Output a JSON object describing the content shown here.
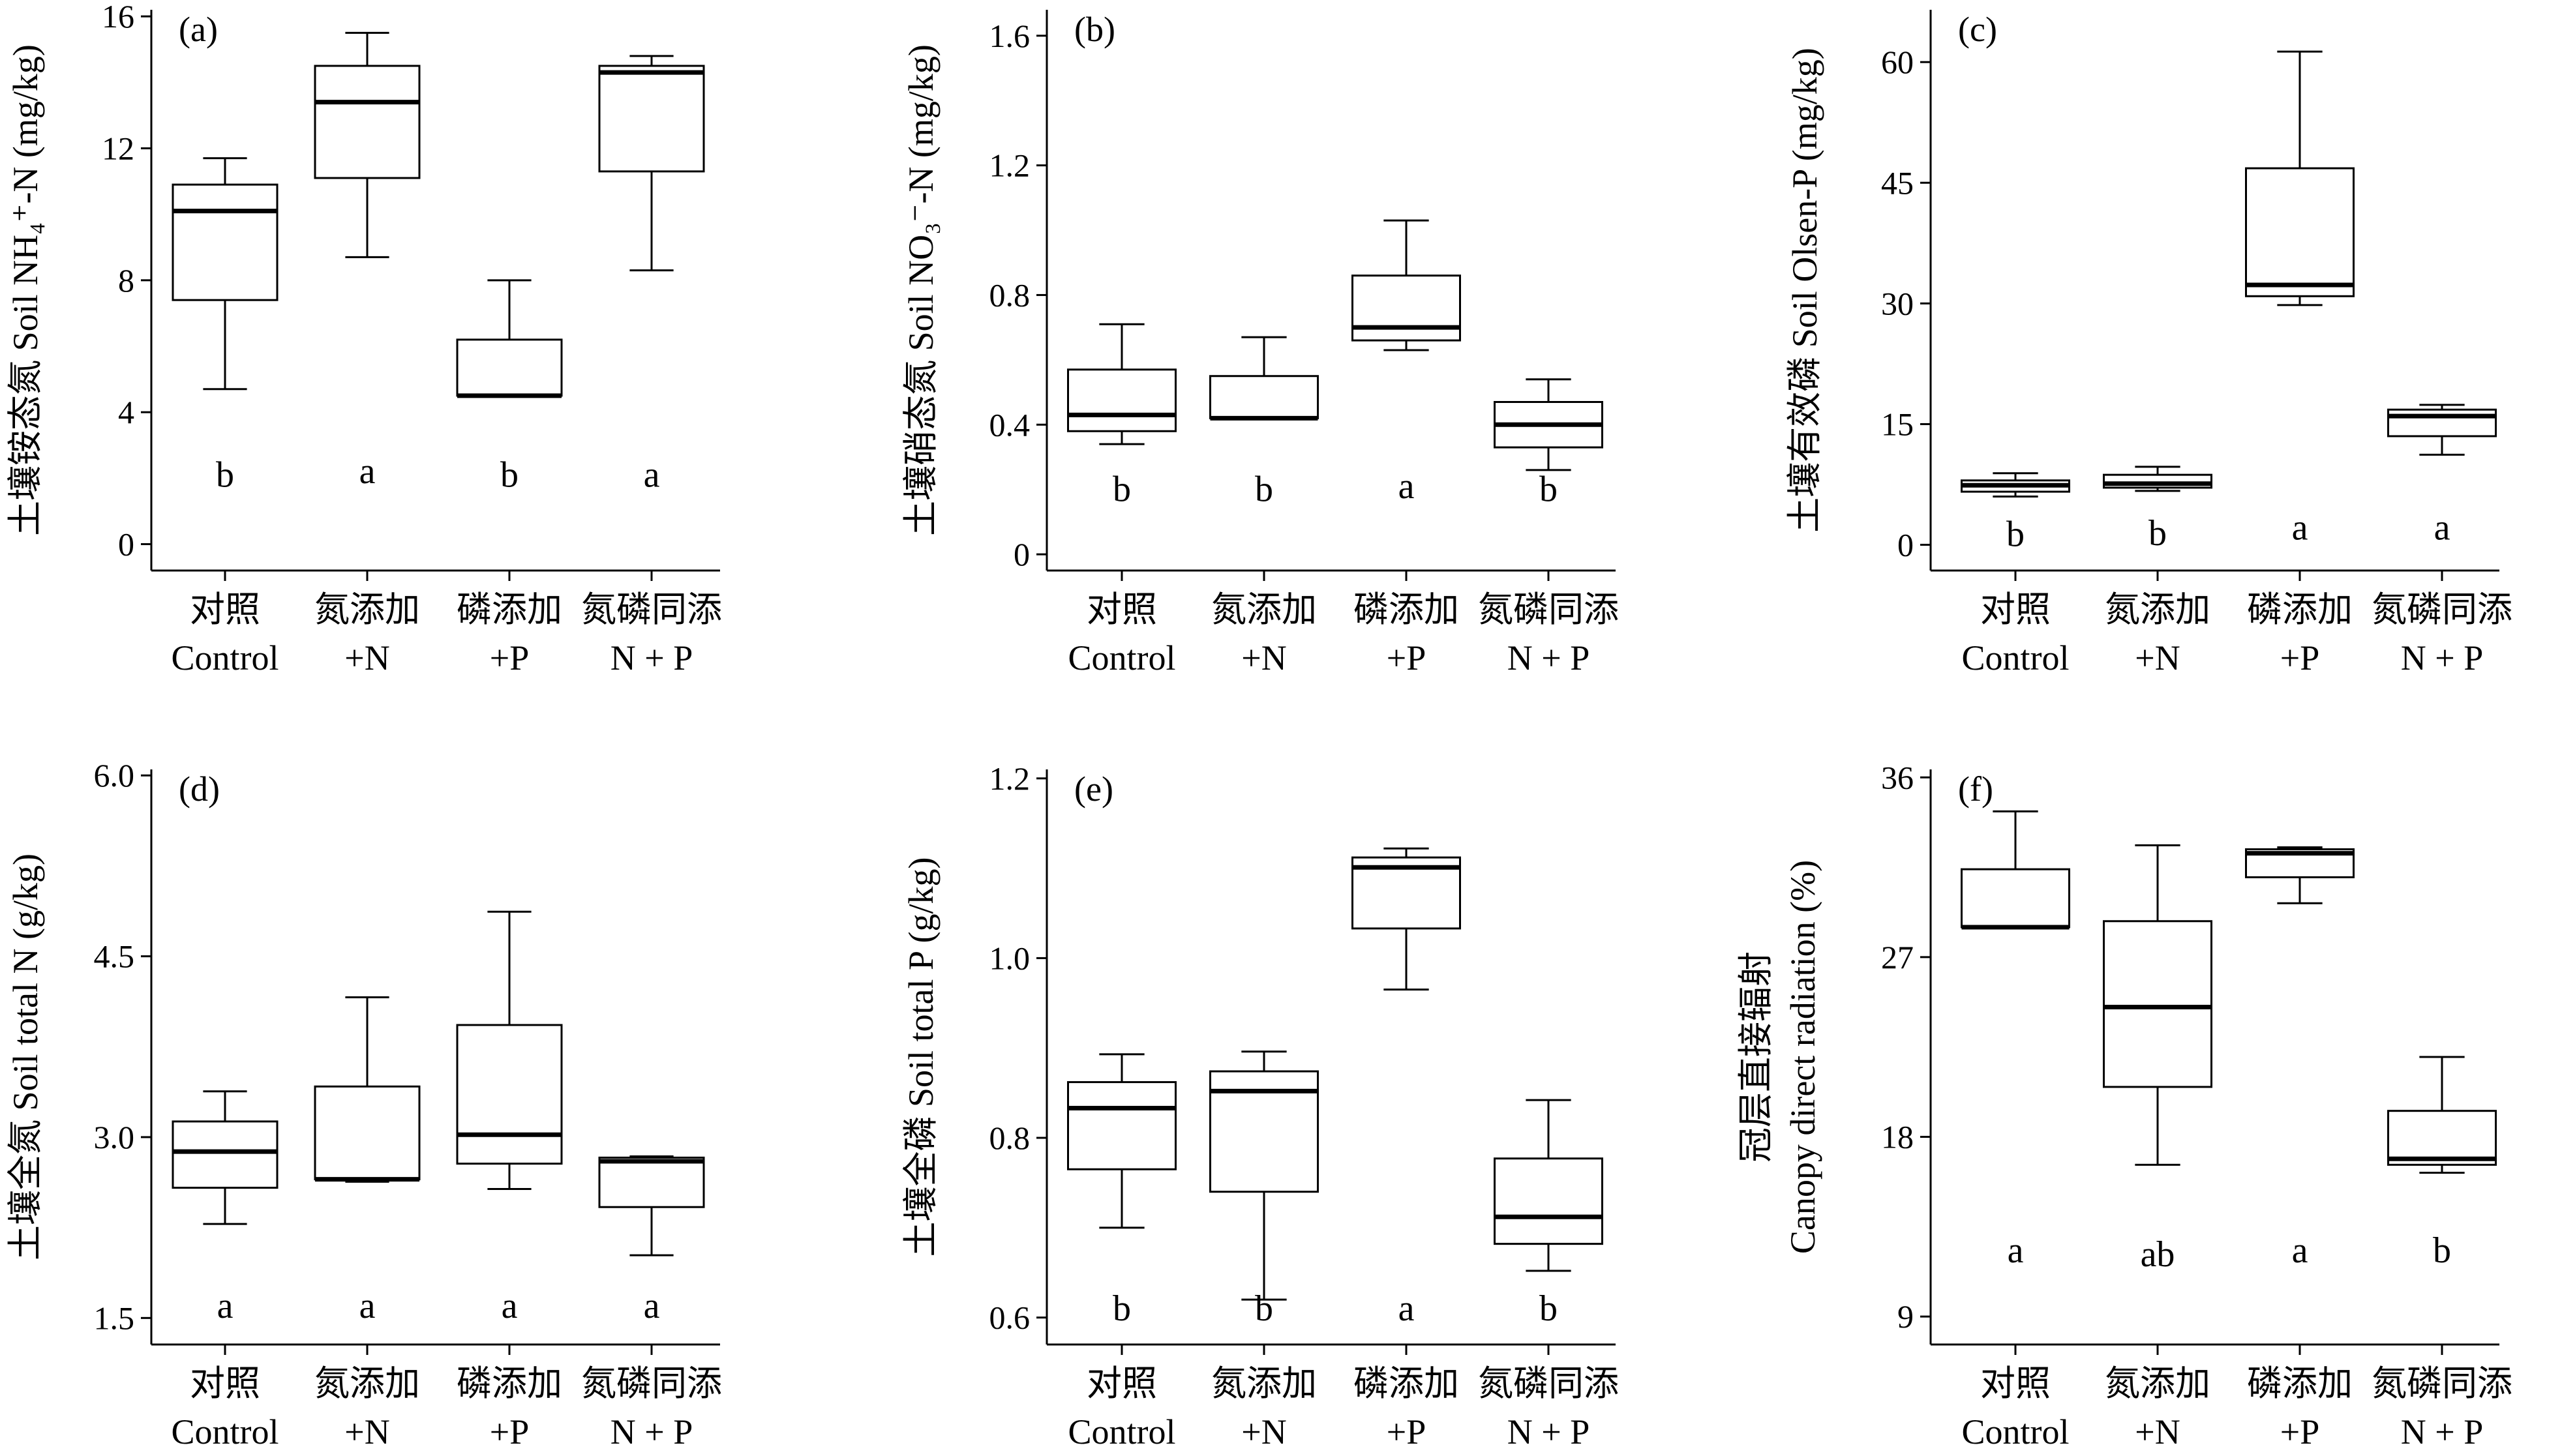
{
  "chart_data": [
    {
      "type": "box",
      "panel": "(a)",
      "ylabel": "土壤铵态氮 Soil NH₄⁺-N (mg/kg)",
      "yticks": [
        0,
        4,
        8,
        12,
        16
      ],
      "ylim": [
        -0.8,
        16.2
      ],
      "categories": [
        {
          "cn": "对照",
          "en": "Control"
        },
        {
          "cn": "氮添加",
          "en": "+N"
        },
        {
          "cn": "磷添加",
          "en": "+P"
        },
        {
          "cn": "氮磷同添",
          "en": "N + P"
        }
      ],
      "boxes": [
        {
          "min": 4.7,
          "q1": 7.4,
          "median": 10.1,
          "q3": 10.9,
          "max": 11.7
        },
        {
          "min": 8.7,
          "q1": 11.1,
          "median": 13.4,
          "q3": 14.5,
          "max": 15.5
        },
        {
          "min": 4.5,
          "q1": 4.5,
          "median": 4.5,
          "q3": 6.2,
          "max": 8.0
        },
        {
          "min": 8.3,
          "q1": 11.3,
          "median": 14.3,
          "q3": 14.5,
          "max": 14.8
        }
      ],
      "letters": [
        "b",
        "a",
        "b",
        "a"
      ],
      "letter_y": [
        2.1,
        2.2,
        2.1,
        2.1
      ]
    },
    {
      "type": "box",
      "panel": "(b)",
      "ylabel": "土壤硝态氮 Soil NO₃⁻-N (mg/kg)",
      "yticks": [
        "0",
        "0.4",
        "0.8",
        "1.2",
        "1.6"
      ],
      "ylim": [
        -0.05,
        1.68
      ],
      "categories": [
        {
          "cn": "对照",
          "en": "Control"
        },
        {
          "cn": "氮添加",
          "en": "+N"
        },
        {
          "cn": "磷添加",
          "en": "+P"
        },
        {
          "cn": "氮磷同添",
          "en": "N + P"
        }
      ],
      "boxes": [
        {
          "min": 0.34,
          "q1": 0.38,
          "median": 0.43,
          "q3": 0.57,
          "max": 0.71
        },
        {
          "min": 0.42,
          "q1": 0.42,
          "median": 0.42,
          "q3": 0.55,
          "max": 0.67
        },
        {
          "min": 0.63,
          "q1": 0.66,
          "median": 0.7,
          "q3": 0.86,
          "max": 1.03
        },
        {
          "min": 0.26,
          "q1": 0.33,
          "median": 0.4,
          "q3": 0.47,
          "max": 0.54
        }
      ],
      "letters": [
        "b",
        "b",
        "a",
        "b"
      ],
      "letter_y": [
        0.2,
        0.2,
        0.21,
        0.2
      ]
    },
    {
      "type": "box",
      "panel": "(c)",
      "ylabel": "土壤有效磷 Soil Olsen-P (mg/kg)",
      "yticks": [
        0,
        15,
        30,
        45,
        60
      ],
      "ylim": [
        -3.2,
        66.5
      ],
      "categories": [
        {
          "cn": "对照",
          "en": "Control"
        },
        {
          "cn": "氮添加",
          "en": "+N"
        },
        {
          "cn": "磷添加",
          "en": "+P"
        },
        {
          "cn": "氮磷同添",
          "en": "N + P"
        }
      ],
      "boxes": [
        {
          "min": 6.0,
          "q1": 6.6,
          "median": 7.4,
          "q3": 8.0,
          "max": 8.9
        },
        {
          "min": 6.7,
          "q1": 7.1,
          "median": 7.6,
          "q3": 8.7,
          "max": 9.7
        },
        {
          "min": 29.8,
          "q1": 30.9,
          "median": 32.3,
          "q3": 46.8,
          "max": 61.3
        },
        {
          "min": 11.2,
          "q1": 13.5,
          "median": 16.0,
          "q3": 16.8,
          "max": 17.4
        }
      ],
      "letters": [
        "b",
        "b",
        "a",
        "a"
      ],
      "letter_y": [
        1.3,
        1.4,
        2.1,
        2.1
      ]
    },
    {
      "type": "box",
      "panel": "(d)",
      "ylabel": "土壤全氮 Soil total N (g/kg)",
      "yticks": [
        "1.5",
        "3.0",
        "4.5",
        "6.0"
      ],
      "ylim": [
        1.28,
        6.05
      ],
      "categories": [
        {
          "cn": "对照",
          "en": "Control"
        },
        {
          "cn": "氮添加",
          "en": "+N"
        },
        {
          "cn": "磷添加",
          "en": "+P"
        },
        {
          "cn": "氮磷同添",
          "en": "N + P"
        }
      ],
      "boxes": [
        {
          "min": 2.28,
          "q1": 2.58,
          "median": 2.88,
          "q3": 3.13,
          "max": 3.38
        },
        {
          "min": 2.63,
          "q1": 2.65,
          "median": 2.65,
          "q3": 3.42,
          "max": 4.16
        },
        {
          "min": 2.57,
          "q1": 2.78,
          "median": 3.02,
          "q3": 3.93,
          "max": 4.87
        },
        {
          "min": 2.02,
          "q1": 2.42,
          "median": 2.8,
          "q3": 2.83,
          "max": 2.84
        }
      ],
      "letters": [
        "a",
        "a",
        "a",
        "a"
      ],
      "letter_y": [
        1.6,
        1.6,
        1.6,
        1.6
      ]
    },
    {
      "type": "box",
      "panel": "(e)",
      "ylabel": "土壤全磷 Soil total P (g/kg)",
      "yticks": [
        "0.6",
        "0.8",
        "1.0",
        "1.2"
      ],
      "ylim": [
        0.57,
        1.21
      ],
      "categories": [
        {
          "cn": "对照",
          "en": "Control"
        },
        {
          "cn": "氮添加",
          "en": "+N"
        },
        {
          "cn": "磷添加",
          "en": "+P"
        },
        {
          "cn": "氮磷同添",
          "en": "N + P"
        }
      ],
      "boxes": [
        {
          "min": 0.7,
          "q1": 0.765,
          "median": 0.833,
          "q3": 0.862,
          "max": 0.893
        },
        {
          "min": 0.62,
          "q1": 0.74,
          "median": 0.852,
          "q3": 0.874,
          "max": 0.896
        },
        {
          "min": 0.965,
          "q1": 1.033,
          "median": 1.101,
          "q3": 1.112,
          "max": 1.122
        },
        {
          "min": 0.652,
          "q1": 0.682,
          "median": 0.712,
          "q3": 0.777,
          "max": 0.842
        }
      ],
      "letters": [
        "b",
        "b",
        "a",
        "b"
      ],
      "letter_y": [
        0.61,
        0.61,
        0.61,
        0.61
      ]
    },
    {
      "type": "box",
      "panel": "(f)",
      "ylabel_cn": "冠层直接辐射",
      "ylabel_en": "Canopy direct radiation (%)",
      "yticks": [
        9,
        18,
        27,
        36
      ],
      "ylim": [
        7.6,
        36.4
      ],
      "categories": [
        {
          "cn": "对照",
          "en": "Control"
        },
        {
          "cn": "氮添加",
          "en": "+N"
        },
        {
          "cn": "磷添加",
          "en": "+P"
        },
        {
          "cn": "氮磷同添",
          "en": "N + P"
        }
      ],
      "boxes": [
        {
          "min": 28.5,
          "q1": 28.5,
          "median": 28.5,
          "q3": 31.4,
          "max": 34.3
        },
        {
          "min": 16.6,
          "q1": 20.5,
          "median": 24.5,
          "q3": 28.8,
          "max": 32.6
        },
        {
          "min": 29.7,
          "q1": 31.0,
          "median": 32.2,
          "q3": 32.4,
          "max": 32.5
        },
        {
          "min": 16.2,
          "q1": 16.6,
          "median": 16.9,
          "q3": 19.3,
          "max": 22.0
        }
      ],
      "letters": [
        "a",
        "ab",
        "a",
        "b"
      ],
      "letter_y": [
        12.3,
        12.1,
        12.3,
        12.3
      ]
    }
  ]
}
